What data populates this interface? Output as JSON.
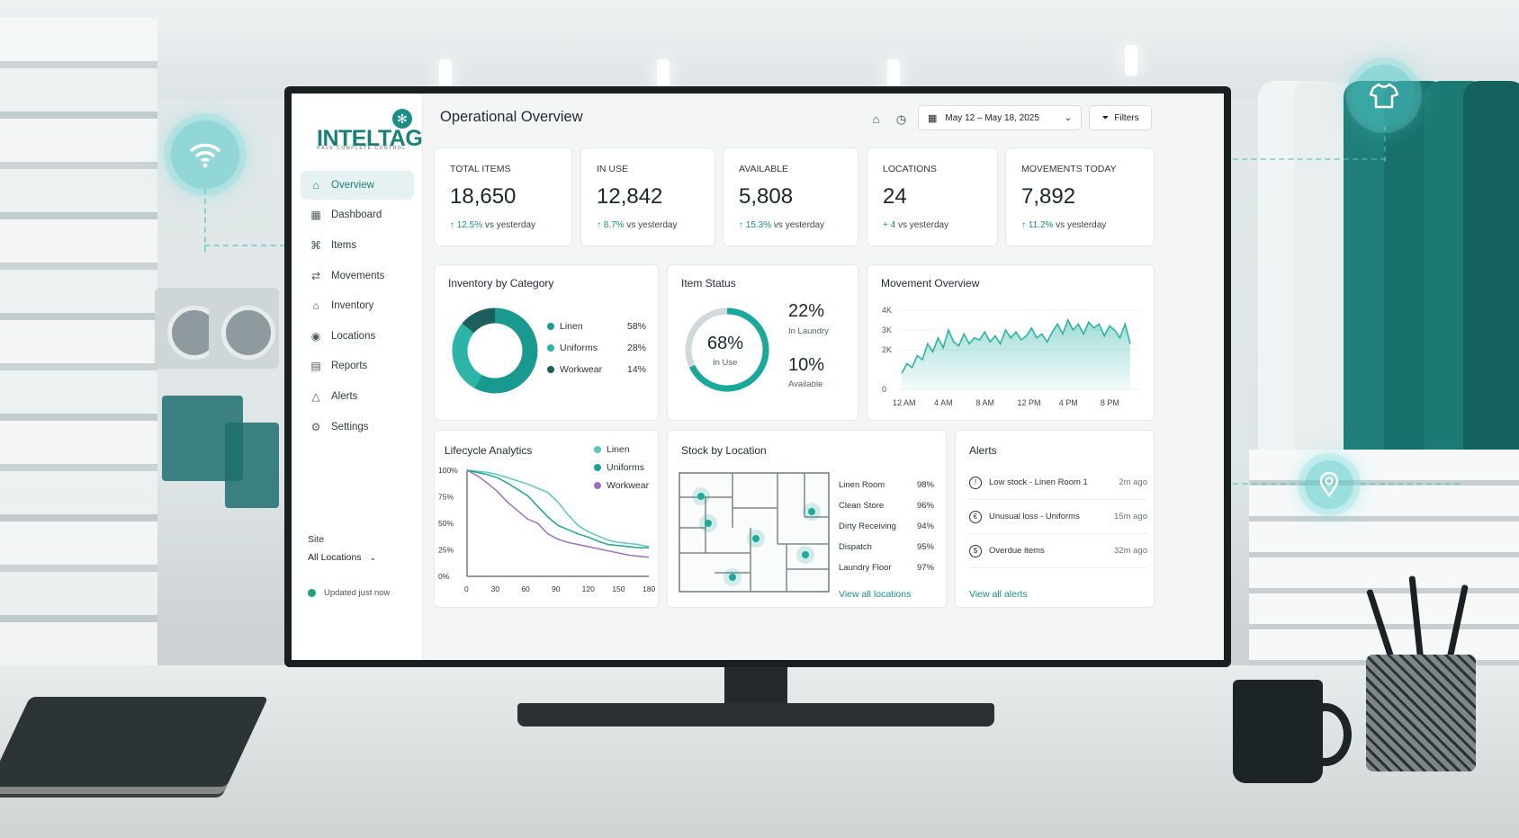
{
  "app": {
    "logo": "INTELTAG",
    "tagline": "HAVE COMPLETE CONTROL",
    "page_title": "Operational Overview"
  },
  "sidebar": {
    "items": [
      {
        "label": "Overview",
        "icon": "home-icon",
        "active": true
      },
      {
        "label": "Dashboard",
        "icon": "grid-icon"
      },
      {
        "label": "Items",
        "icon": "tag-icon"
      },
      {
        "label": "Movements",
        "icon": "transfer-icon"
      },
      {
        "label": "Inventory",
        "icon": "warehouse-icon"
      },
      {
        "label": "Locations",
        "icon": "pin-icon"
      },
      {
        "label": "Reports",
        "icon": "report-icon"
      },
      {
        "label": "Alerts",
        "icon": "bell-icon"
      },
      {
        "label": "Settings",
        "icon": "gear-icon"
      }
    ],
    "site_label": "Site",
    "site_value": "All Locations",
    "status": "Updated just now"
  },
  "header": {
    "date_range": "May 12 – May 18, 2025",
    "filters_label": "Filters"
  },
  "kpis": [
    {
      "label": "TOTAL ITEMS",
      "value": "18,650",
      "delta": "↑ 12.5%",
      "suffix": " vs yesterday"
    },
    {
      "label": "IN USE",
      "value": "12,842",
      "delta": "↑ 8.7%",
      "suffix": " vs yesterday"
    },
    {
      "label": "AVAILABLE",
      "value": "5,808",
      "delta": "↑ 15.3%",
      "suffix": " vs yesterday"
    },
    {
      "label": "LOCATIONS",
      "value": "24",
      "delta": "+ 4",
      "suffix": " vs yesterday"
    },
    {
      "label": "MOVEMENTS TODAY",
      "value": "7,892",
      "delta": "↑ 11.2%",
      "suffix": " vs yesterday"
    }
  ],
  "inventory": {
    "title": "Inventory by Category",
    "items": [
      {
        "label": "Linen",
        "pct": "58%",
        "value": 58,
        "color": "#1a9a8f"
      },
      {
        "label": "Uniforms",
        "pct": "28%",
        "value": 28,
        "color": "#2cb5a6"
      },
      {
        "label": "Workwear",
        "pct": "14%",
        "value": 14,
        "color": "#1d5f5c"
      }
    ]
  },
  "status": {
    "title": "Item Status",
    "center_pct": "68%",
    "center_label": "In Use",
    "in_use": 68,
    "laundry_pct": "22%",
    "laundry_label": "In Laundry",
    "available_pct": "10%",
    "available_label": "Available"
  },
  "chart_data": [
    {
      "type": "area",
      "title": "Movement Overview",
      "x_ticks": [
        "12 AM",
        "4 AM",
        "8 AM",
        "12 PM",
        "4 PM",
        "8 PM"
      ],
      "y_ticks": [
        "0",
        "2K",
        "3K",
        "4K"
      ],
      "ylim": [
        0,
        4000
      ],
      "x": [
        0,
        0.5,
        1,
        1.5,
        2,
        2.5,
        3,
        3.5,
        4,
        4.5,
        5,
        5.5,
        6,
        6.5,
        7,
        7.5,
        8,
        8.5,
        9,
        9.5,
        10,
        10.5,
        11,
        11.5,
        12,
        12.5,
        13,
        13.5,
        14,
        14.5,
        15,
        15.5,
        16,
        16.5,
        17,
        17.5,
        18,
        18.5,
        19,
        19.5,
        20,
        20.5,
        21,
        21.5,
        22
      ],
      "values": [
        800,
        1300,
        1100,
        1700,
        1500,
        2300,
        1900,
        2600,
        2100,
        3000,
        2400,
        2200,
        2800,
        2300,
        2600,
        2500,
        2900,
        2400,
        2700,
        2300,
        3000,
        2600,
        2900,
        2500,
        2700,
        3100,
        2600,
        2800,
        2400,
        2900,
        3300,
        2800,
        3500,
        3000,
        3300,
        2800,
        3400,
        3100,
        3300,
        2700,
        3200,
        3000,
        2600,
        3300,
        2300
      ],
      "color": "#2db3a5"
    },
    {
      "type": "line",
      "title": "Lifecycle Analytics",
      "x": [
        0,
        10,
        20,
        30,
        40,
        50,
        60,
        70,
        80,
        90,
        100,
        110,
        120,
        130,
        140,
        150,
        160,
        170,
        180
      ],
      "x_ticks": [
        "0",
        "30",
        "60",
        "90",
        "120",
        "150",
        "180"
      ],
      "y_ticks": [
        "0%",
        "25%",
        "50%",
        "75%",
        "100%"
      ],
      "ylim": [
        0,
        100
      ],
      "series": [
        {
          "name": "Linen",
          "color": "#5cc7bd",
          "values": [
            100,
            99,
            98,
            96,
            93,
            90,
            87,
            83,
            79,
            70,
            58,
            48,
            42,
            38,
            34,
            32,
            31,
            30,
            28
          ]
        },
        {
          "name": "Uniforms",
          "color": "#1aa590",
          "values": [
            100,
            98,
            96,
            93,
            88,
            82,
            76,
            66,
            56,
            48,
            44,
            40,
            37,
            33,
            30,
            29,
            28,
            27,
            27
          ]
        },
        {
          "name": "Workwear",
          "color": "#9e6fc0",
          "values": [
            100,
            95,
            88,
            80,
            70,
            62,
            54,
            50,
            40,
            35,
            32,
            30,
            28,
            26,
            24,
            22,
            20,
            19,
            18
          ]
        }
      ]
    }
  ],
  "stock": {
    "title": "Stock by Location",
    "rows": [
      {
        "label": "Linen Room",
        "pct": "98%"
      },
      {
        "label": "Clean Store",
        "pct": "96%"
      },
      {
        "label": "Dirty Receiving",
        "pct": "94%"
      },
      {
        "label": "Dispatch",
        "pct": "95%"
      },
      {
        "label": "Laundry Floor",
        "pct": "97%"
      }
    ],
    "link": "View all locations"
  },
  "alerts": {
    "title": "Alerts",
    "rows": [
      {
        "icon": "warning-icon",
        "glyph": "!",
        "text": "Low stock - Linen Room 1",
        "time": "2m ago"
      },
      {
        "icon": "euro-icon",
        "glyph": "€",
        "text": "Unusual loss - Uniforms",
        "time": "15m ago"
      },
      {
        "icon": "dollar-icon",
        "glyph": "$",
        "text": "Overdue items",
        "time": "32m ago"
      }
    ],
    "link": "View all alerts"
  }
}
